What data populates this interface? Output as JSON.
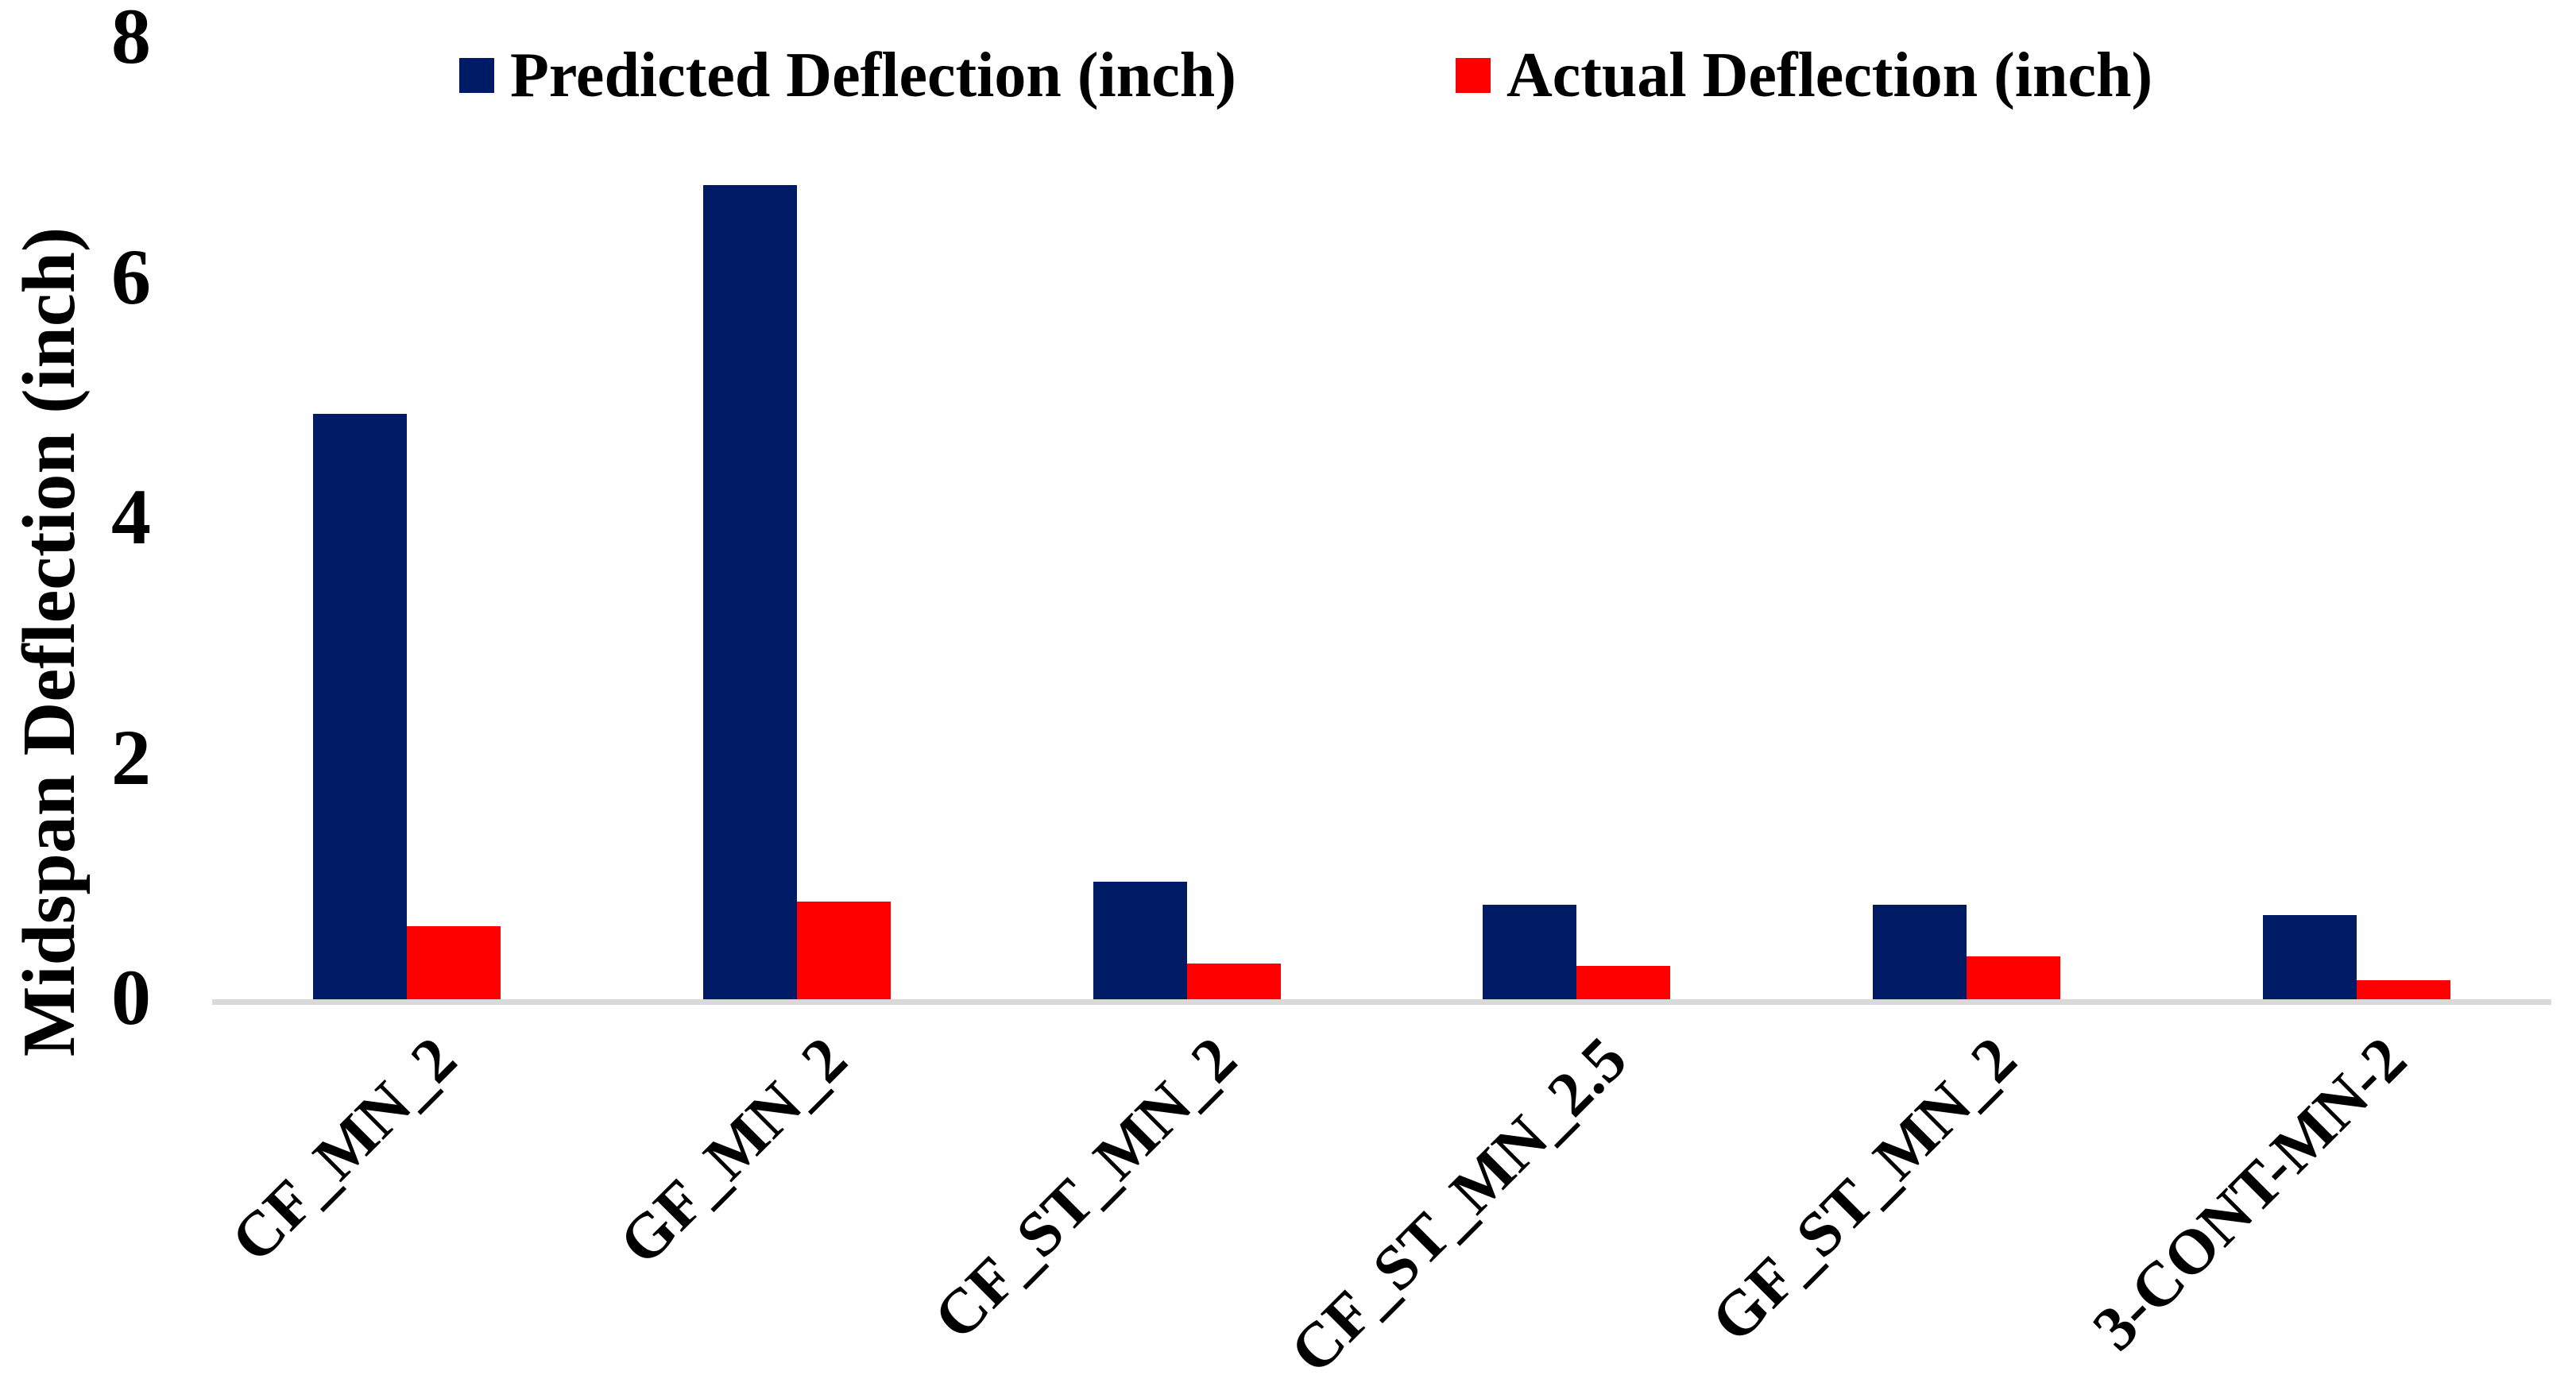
{
  "chart_data": {
    "type": "bar",
    "title": "",
    "xlabel": "",
    "ylabel": "Midspan Deflection (inch)",
    "categories": [
      "CF_MN_2",
      "GF_MN_2",
      "CF_ST_MN_2",
      "CF_ST_MN_2.5",
      "GF_ST_MN_2",
      "3-CONT-MN-2"
    ],
    "series": [
      {
        "name": "Predicted Deflection (inch)",
        "color": "#001B66",
        "values": [
          4.87,
          6.78,
          0.98,
          0.79,
          0.79,
          0.7
        ]
      },
      {
        "name": "Actual Deflection (inch)",
        "color": "#FF0000",
        "values": [
          0.61,
          0.81,
          0.3,
          0.28,
          0.36,
          0.16
        ]
      }
    ],
    "ylim": [
      0,
      8
    ],
    "yticks": [
      0,
      2,
      4,
      6,
      8
    ],
    "grid": false,
    "legend_position": "top",
    "axis_line_color": "#D9D9D9",
    "background_color": "#FFFFFF",
    "text_color": "#000000"
  }
}
